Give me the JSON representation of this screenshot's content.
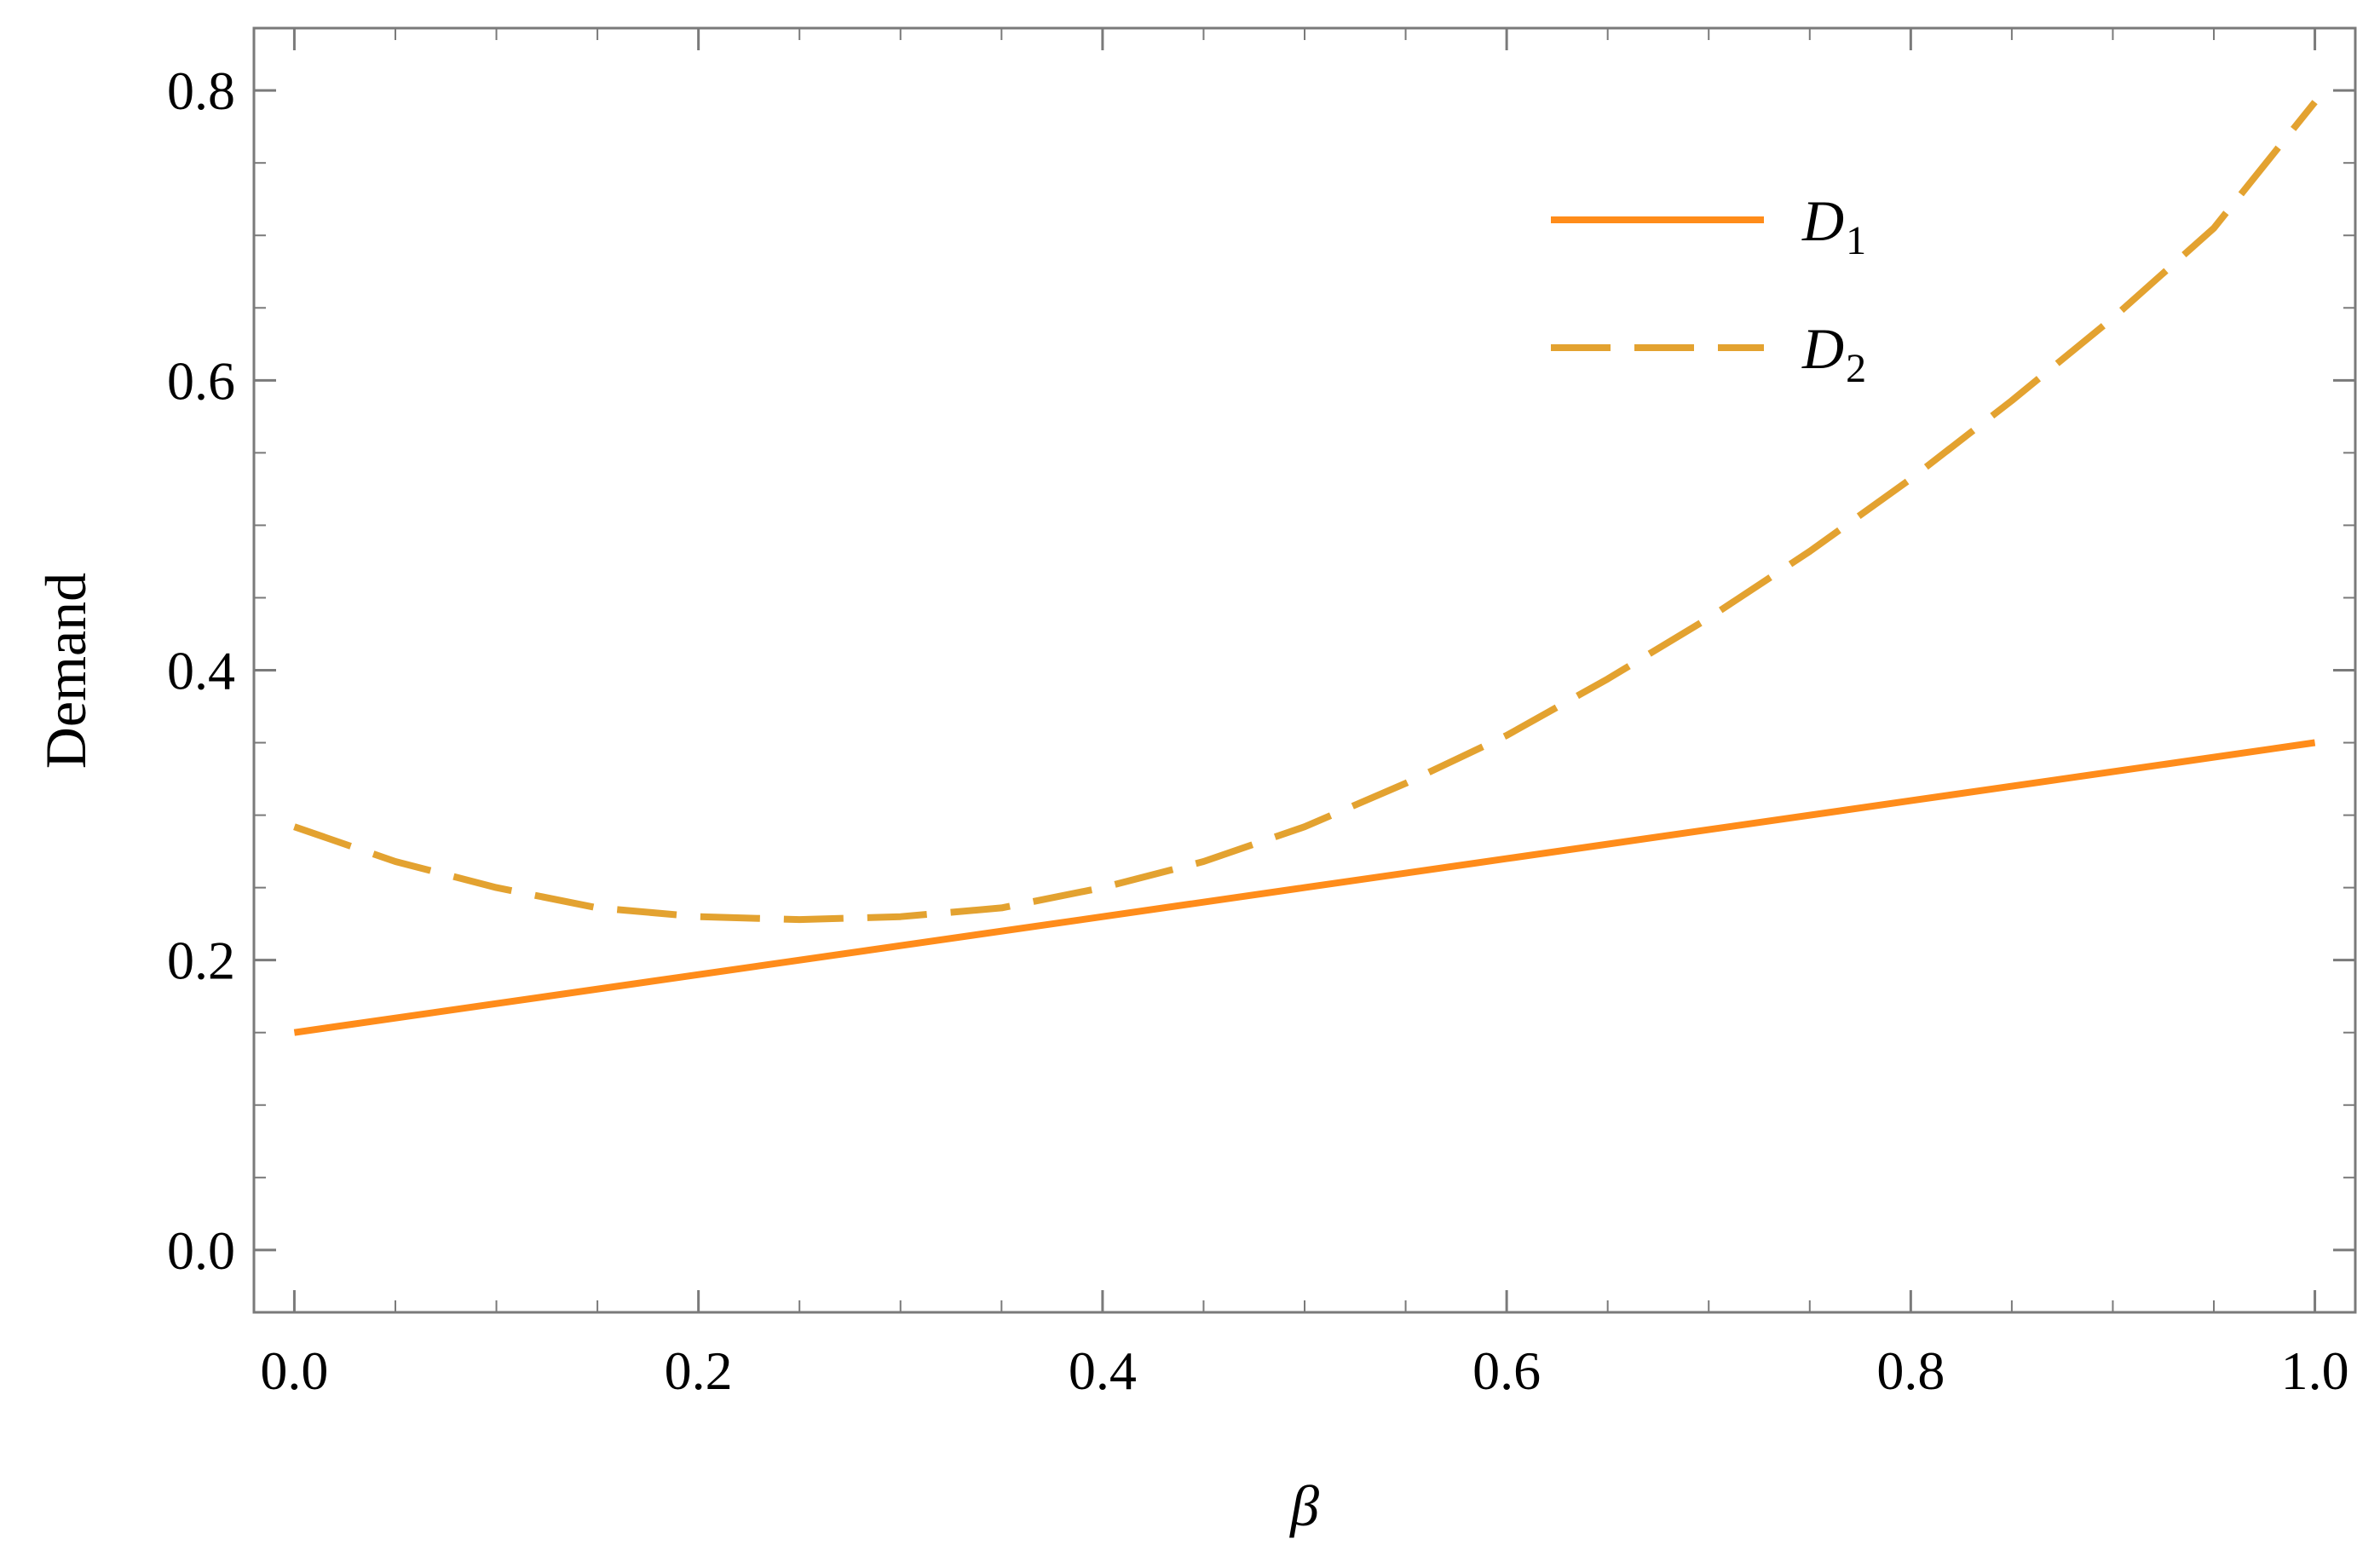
{
  "chart_data": {
    "type": "line",
    "xlabel": "β",
    "ylabel": "Demand",
    "xlim": [
      -0.02,
      1.02
    ],
    "ylim": [
      -0.043,
      0.843
    ],
    "x_ticks": [
      0.0,
      0.2,
      0.4,
      0.6,
      0.8,
      1.0
    ],
    "x_tick_labels": [
      "0.0",
      "0.2",
      "0.4",
      "0.6",
      "0.8",
      "1.0"
    ],
    "y_ticks": [
      0.0,
      0.2,
      0.4,
      0.6,
      0.8
    ],
    "y_tick_labels": [
      "0.0",
      "0.2",
      "0.4",
      "0.6",
      "0.8"
    ],
    "grid": false,
    "frame": true,
    "legend_position": "top-right",
    "series": [
      {
        "name": "D",
        "subscript": "1",
        "style": "solid",
        "color": "#FF8C1A",
        "x": [
          0.0,
          0.1,
          0.2,
          0.3,
          0.4,
          0.5,
          0.6,
          0.7,
          0.8,
          0.9,
          1.0
        ],
        "y": [
          0.15,
          0.17,
          0.19,
          0.21,
          0.23,
          0.25,
          0.27,
          0.29,
          0.31,
          0.33,
          0.35
        ]
      },
      {
        "name": "D",
        "subscript": "2",
        "style": "dashed",
        "color": "#E3A230",
        "x": [
          0.0,
          0.05,
          0.1,
          0.15,
          0.2,
          0.25,
          0.3,
          0.35,
          0.4,
          0.45,
          0.5,
          0.55,
          0.6,
          0.65,
          0.7,
          0.75,
          0.8,
          0.85,
          0.9,
          0.95,
          1.0
        ],
        "y": [
          0.292,
          0.268,
          0.25,
          0.236,
          0.23,
          0.228,
          0.23,
          0.236,
          0.25,
          0.268,
          0.292,
          0.322,
          0.355,
          0.394,
          0.436,
          0.482,
          0.532,
          0.586,
          0.643,
          0.705,
          0.792
        ]
      }
    ]
  }
}
